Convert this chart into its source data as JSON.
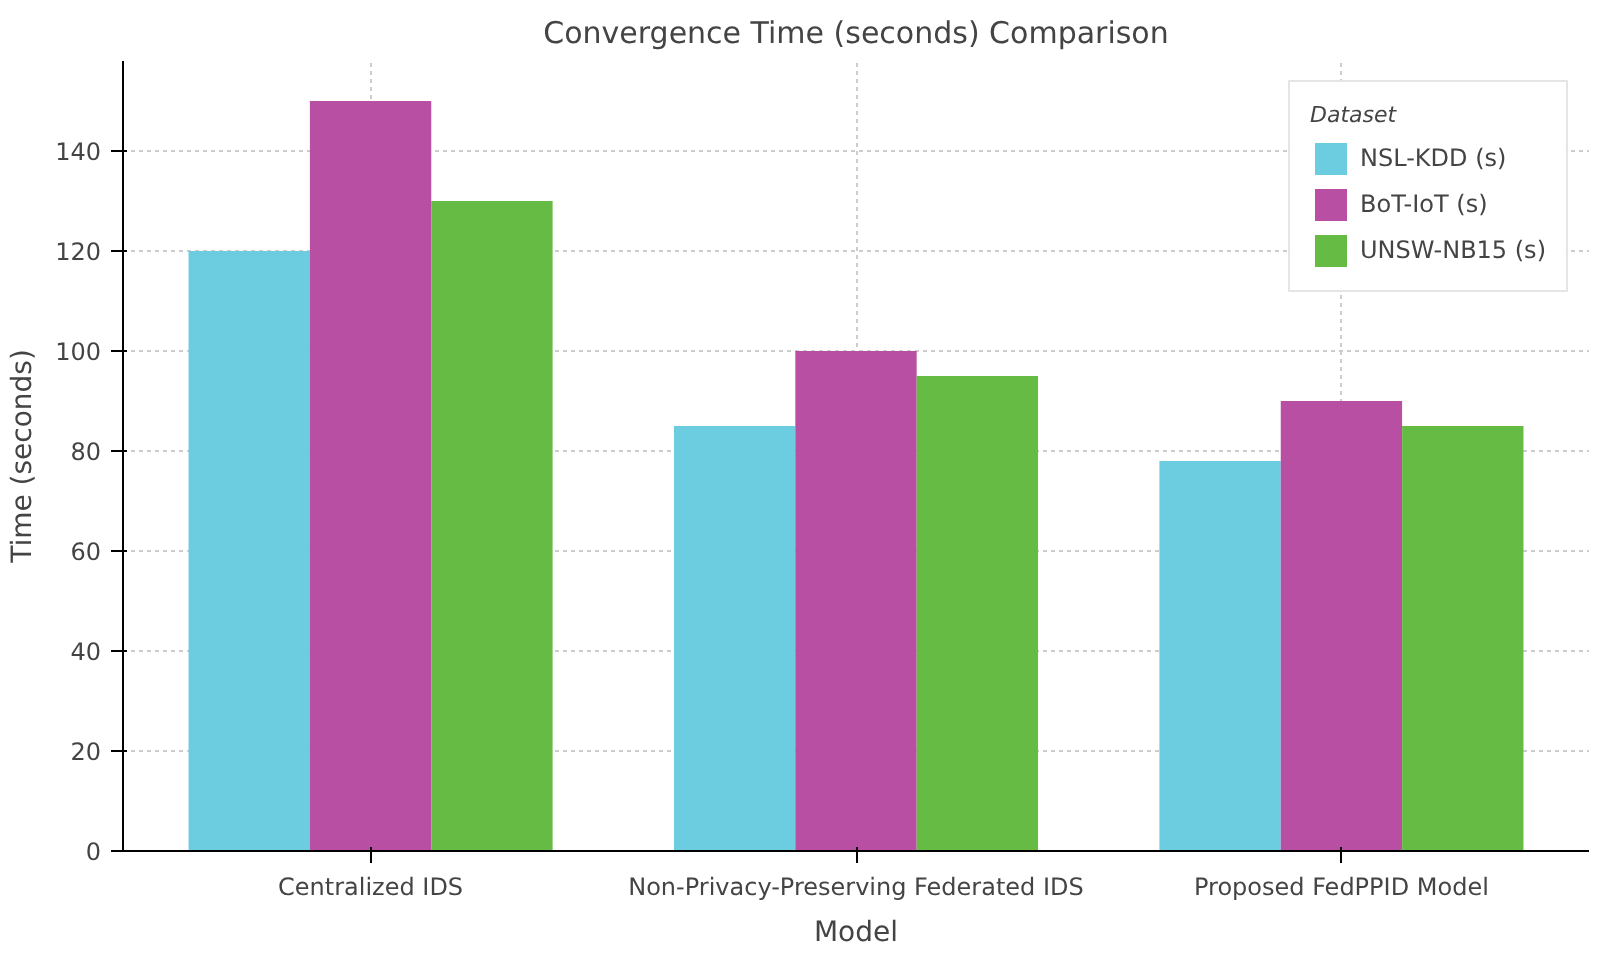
{
  "chart_data": {
    "type": "bar",
    "title": "Convergence Time (seconds) Comparison",
    "xlabel": "Model",
    "ylabel": "Time (seconds)",
    "legend_title": "Dataset",
    "categories": [
      "Centralized IDS",
      "Non-Privacy-Preserving Federated IDS",
      "Proposed FedPPID Model"
    ],
    "series": [
      {
        "name": "NSL-KDD (s)",
        "color": "#6ccde0",
        "values": [
          120,
          85,
          78
        ]
      },
      {
        "name": "BoT-IoT (s)",
        "color": "#b94fa3",
        "values": [
          150,
          100,
          90
        ]
      },
      {
        "name": "UNSW-NB15 (s)",
        "color": "#66bb44",
        "values": [
          130,
          95,
          85
        ]
      }
    ],
    "ylim": [
      0,
      158
    ],
    "yticks": [
      0,
      20,
      40,
      60,
      80,
      100,
      120,
      140
    ],
    "grid": true,
    "legend": "top right"
  }
}
